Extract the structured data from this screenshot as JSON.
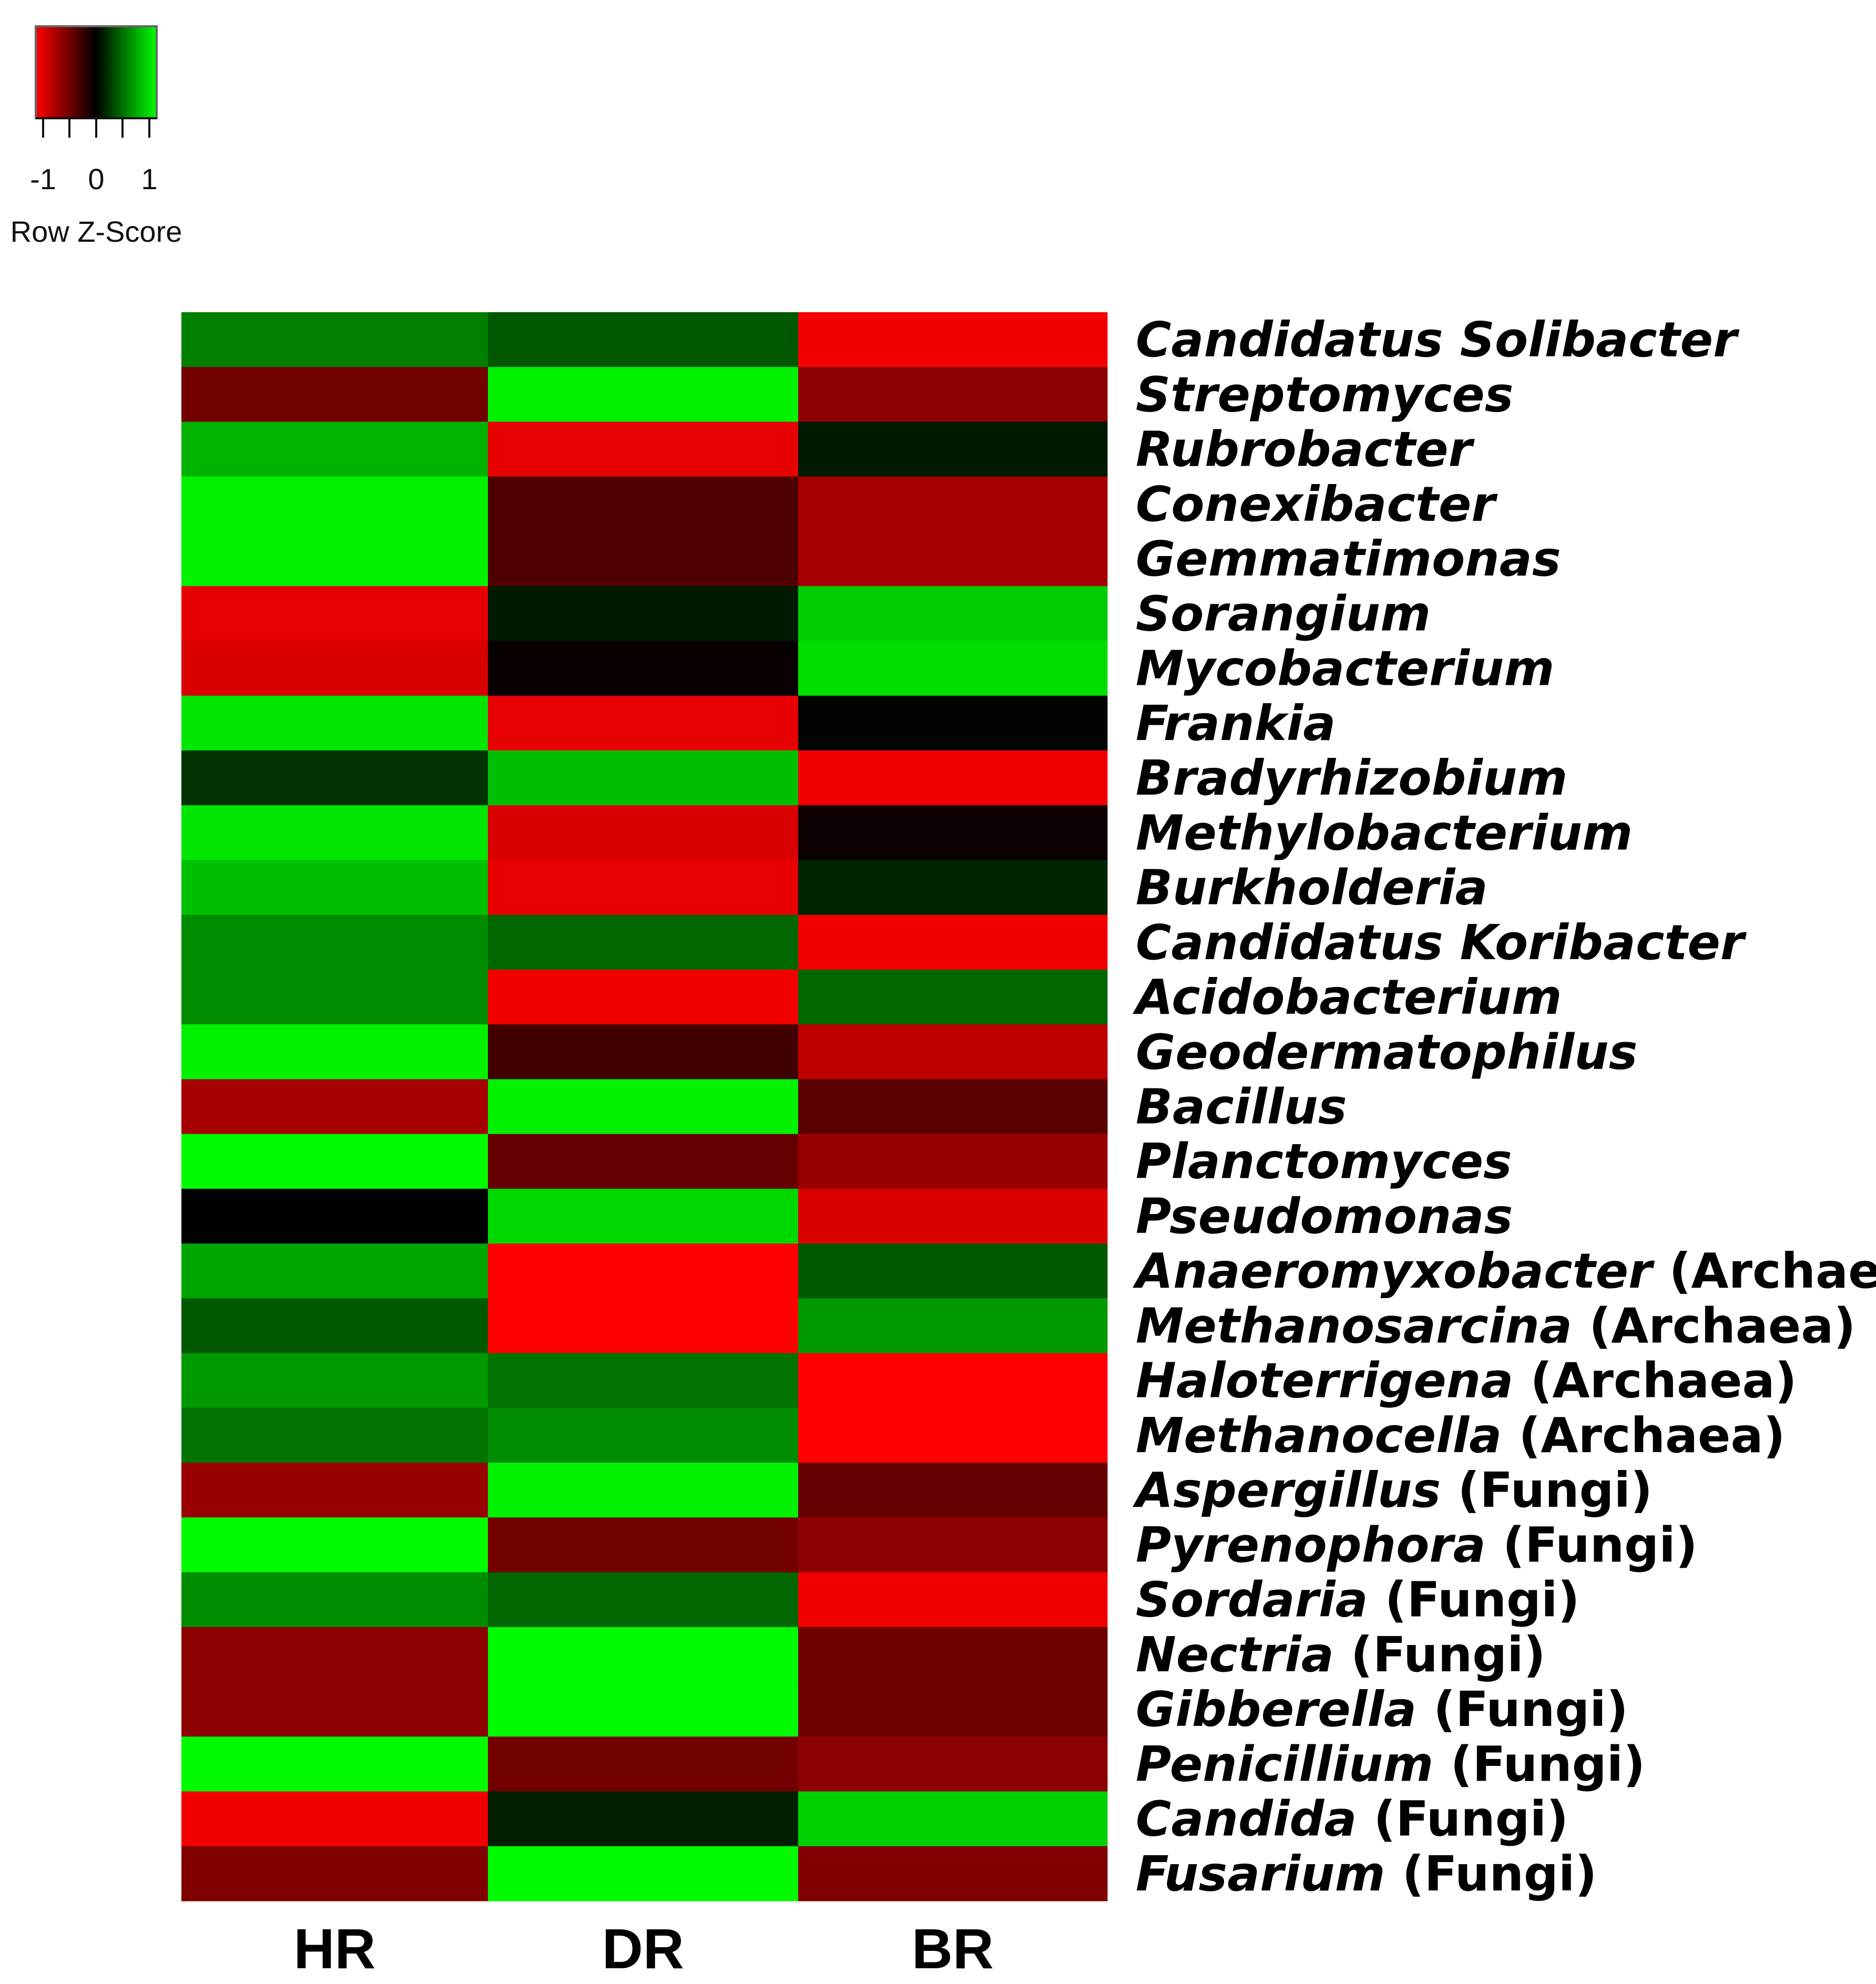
{
  "chart_data": {
    "type": "heatmap",
    "columns": [
      "HR",
      "DR",
      "BR"
    ],
    "rows": [
      {
        "genus": "Candidatus Solibacter",
        "group": "",
        "values": [
          0.5,
          0.35,
          -0.95
        ]
      },
      {
        "genus": "Streptomyces",
        "group": "",
        "values": [
          -0.45,
          0.95,
          -0.55
        ]
      },
      {
        "genus": "Rubrobacter",
        "group": "",
        "values": [
          0.7,
          -0.9,
          0.1
        ]
      },
      {
        "genus": "Conexibacter",
        "group": "",
        "values": [
          0.95,
          -0.3,
          -0.65
        ]
      },
      {
        "genus": "Gemmatimonas",
        "group": "",
        "values": [
          0.95,
          -0.3,
          -0.65
        ]
      },
      {
        "genus": "Sorangium",
        "group": "",
        "values": [
          -0.9,
          0.1,
          0.8
        ]
      },
      {
        "genus": "Mycobacterium",
        "group": "",
        "values": [
          -0.85,
          -0.03,
          0.88
        ]
      },
      {
        "genus": "Frankia",
        "group": "",
        "values": [
          0.9,
          -0.9,
          0.02
        ]
      },
      {
        "genus": "Bradyrhizobium",
        "group": "",
        "values": [
          0.2,
          0.75,
          -0.95
        ]
      },
      {
        "genus": "Methylobacterium",
        "group": "",
        "values": [
          0.9,
          -0.85,
          -0.05
        ]
      },
      {
        "genus": "Burkholderia",
        "group": "",
        "values": [
          0.75,
          -0.9,
          0.15
        ]
      },
      {
        "genus": "Candidatus Koribacter",
        "group": "",
        "values": [
          0.55,
          0.4,
          -0.95
        ]
      },
      {
        "genus": "Acidobacterium",
        "group": "",
        "values": [
          0.55,
          -0.95,
          0.4
        ]
      },
      {
        "genus": "Geodermatophilus",
        "group": "",
        "values": [
          0.95,
          -0.25,
          -0.75
        ]
      },
      {
        "genus": "Bacillus",
        "group": "",
        "values": [
          -0.65,
          0.95,
          -0.35
        ]
      },
      {
        "genus": "Planctomyces",
        "group": "",
        "values": [
          0.98,
          -0.4,
          -0.6
        ]
      },
      {
        "genus": "Pseudomonas",
        "group": "",
        "values": [
          0.0,
          0.85,
          -0.85
        ]
      },
      {
        "genus": "Anaeromyxobacter",
        "group": "(Archaea)",
        "values": [
          0.65,
          -1.0,
          0.35
        ]
      },
      {
        "genus": "Methanosarcina",
        "group": "(Archaea)",
        "values": [
          0.35,
          -1.0,
          0.6
        ]
      },
      {
        "genus": "Haloterrigena",
        "group": "(Archaea)",
        "values": [
          0.6,
          0.45,
          -1.0
        ]
      },
      {
        "genus": "Methanocella",
        "group": "(Archaea)",
        "values": [
          0.45,
          0.55,
          -1.0
        ]
      },
      {
        "genus": "Aspergillus",
        "group": "(Fungi)",
        "values": [
          -0.6,
          0.95,
          -0.4
        ]
      },
      {
        "genus": "Pyrenophora",
        "group": "(Fungi)",
        "values": [
          0.98,
          -0.45,
          -0.55
        ]
      },
      {
        "genus": "Sordaria",
        "group": "(Fungi)",
        "values": [
          0.55,
          0.4,
          -0.95
        ]
      },
      {
        "genus": "Nectria",
        "group": "(Fungi)",
        "values": [
          -0.55,
          0.98,
          -0.43
        ]
      },
      {
        "genus": "Gibberella",
        "group": "(Fungi)",
        "values": [
          -0.55,
          0.98,
          -0.43
        ]
      },
      {
        "genus": "Penicillium",
        "group": "(Fungi)",
        "values": [
          0.98,
          -0.45,
          -0.55
        ]
      },
      {
        "genus": "Candida",
        "group": "(Fungi)",
        "values": [
          -0.95,
          0.12,
          0.82
        ]
      },
      {
        "genus": "Fusarium",
        "group": "(Fungi)",
        "values": [
          -0.5,
          0.98,
          -0.5
        ]
      }
    ],
    "color_scale": {
      "low": "#ff0000",
      "mid": "#000000",
      "high": "#00ff00"
    },
    "legend": {
      "title": "Row Z-Score",
      "tick_labels": [
        "-1",
        "0",
        "1"
      ],
      "range": [
        -1,
        1
      ],
      "placement": "top-left"
    }
  }
}
